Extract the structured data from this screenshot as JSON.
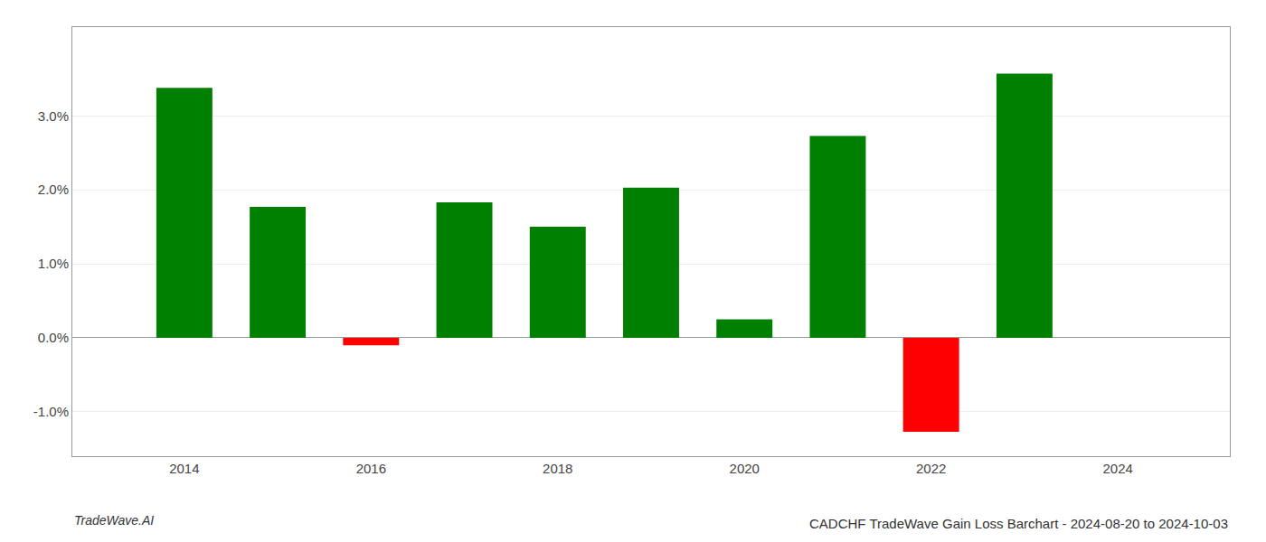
{
  "chart_data": {
    "type": "bar",
    "title": "CADCHF TradeWave Gain Loss Barchart - 2024-08-20 to 2024-10-03",
    "annotations": [
      "TradeWave.AI"
    ],
    "x": [
      2014,
      2015,
      2016,
      2017,
      2018,
      2019,
      2020,
      2021,
      2022,
      2023
    ],
    "values": [
      0.0338,
      0.0177,
      -0.001,
      0.0183,
      0.015,
      0.0203,
      0.0025,
      0.0273,
      -0.0127,
      0.0357
    ],
    "colors": [
      "#008000",
      "#008000",
      "#ff0000",
      "#008000",
      "#008000",
      "#008000",
      "#008000",
      "#008000",
      "#ff0000",
      "#008000"
    ],
    "xlim": [
      2012.8,
      2025.2
    ],
    "xticks": [
      2014,
      2016,
      2018,
      2020,
      2022,
      2024
    ],
    "ylim": [
      -0.016,
      0.042
    ],
    "yticks": [
      {
        "value": -0.01,
        "label": "-1.0%"
      },
      {
        "value": 0.0,
        "label": "0.0%"
      },
      {
        "value": 0.01,
        "label": "1.0%"
      },
      {
        "value": 0.02,
        "label": "2.0%"
      },
      {
        "value": 0.03,
        "label": "3.0%"
      }
    ],
    "grid": true
  }
}
